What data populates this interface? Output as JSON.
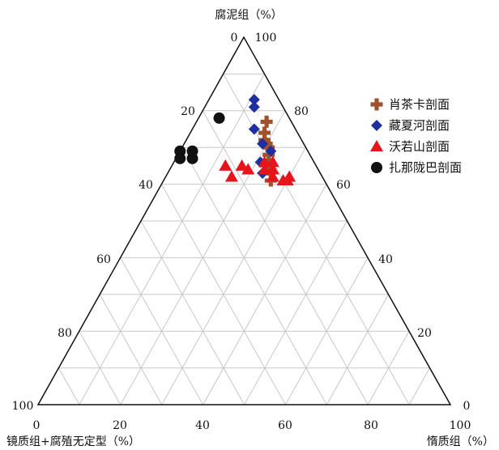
{
  "chart_data": {
    "type": "ternary",
    "axes": {
      "top": {
        "label": "腐泥组（%）",
        "ticks": [
          "0",
          "100"
        ]
      },
      "left_ticks": [
        "100",
        "80",
        "60",
        "40",
        "20"
      ],
      "right_ticks": [
        "80",
        "60",
        "40",
        "20",
        "0"
      ],
      "bottom": {
        "ticks": [
          "0",
          "20",
          "40",
          "60",
          "80",
          "100"
        ],
        "left_label": "镜质组+腐殖无定型（%）",
        "right_label": "惰质组（%）"
      }
    },
    "grid_step": 10,
    "grid": true,
    "legend_position": "top-right",
    "series": [
      {
        "name": "肖茶卡剖面",
        "marker": "cross",
        "color": "#a0522d",
        "points": [
          {
            "sapropel": 77,
            "inertinite": 17
          },
          {
            "sapropel": 74,
            "inertinite": 18
          },
          {
            "sapropel": 72,
            "inertinite": 19
          },
          {
            "sapropel": 71,
            "inertinite": 20
          },
          {
            "sapropel": 70,
            "inertinite": 21
          },
          {
            "sapropel": 68,
            "inertinite": 22
          },
          {
            "sapropel": 66,
            "inertinite": 23
          },
          {
            "sapropel": 64,
            "inertinite": 24
          },
          {
            "sapropel": 61,
            "inertinite": 26
          }
        ]
      },
      {
        "name": "藏夏河剖面",
        "marker": "diamond",
        "color": "#1f2ea0",
        "points": [
          {
            "sapropel": 83,
            "inertinite": 11
          },
          {
            "sapropel": 81,
            "inertinite": 12
          },
          {
            "sapropel": 75,
            "inertinite": 15
          },
          {
            "sapropel": 71,
            "inertinite": 19
          },
          {
            "sapropel": 69,
            "inertinite": 22
          },
          {
            "sapropel": 66,
            "inertinite": 21
          },
          {
            "sapropel": 63,
            "inertinite": 23
          }
        ]
      },
      {
        "name": "沃若山剖面",
        "marker": "triangle",
        "color": "#e8141c",
        "points": [
          {
            "sapropel": 65,
            "inertinite": 13
          },
          {
            "sapropel": 65,
            "inertinite": 17
          },
          {
            "sapropel": 64,
            "inertinite": 19
          },
          {
            "sapropel": 66,
            "inertinite": 22
          },
          {
            "sapropel": 66,
            "inertinite": 24
          },
          {
            "sapropel": 64,
            "inertinite": 23
          },
          {
            "sapropel": 64,
            "inertinite": 25
          },
          {
            "sapropel": 62,
            "inertinite": 26
          },
          {
            "sapropel": 61,
            "inertinite": 29
          },
          {
            "sapropel": 61,
            "inertinite": 30
          },
          {
            "sapropel": 62,
            "inertinite": 30
          },
          {
            "sapropel": 62,
            "inertinite": 16
          }
        ]
      },
      {
        "name": "扎那陇巴剖面",
        "marker": "circle",
        "color": "#111111",
        "points": [
          {
            "sapropel": 78,
            "inertinite": 5
          },
          {
            "sapropel": 69,
            "inertinite": 0
          },
          {
            "sapropel": 69,
            "inertinite": 3
          },
          {
            "sapropel": 67,
            "inertinite": 1
          },
          {
            "sapropel": 67,
            "inertinite": 4
          }
        ]
      }
    ]
  }
}
